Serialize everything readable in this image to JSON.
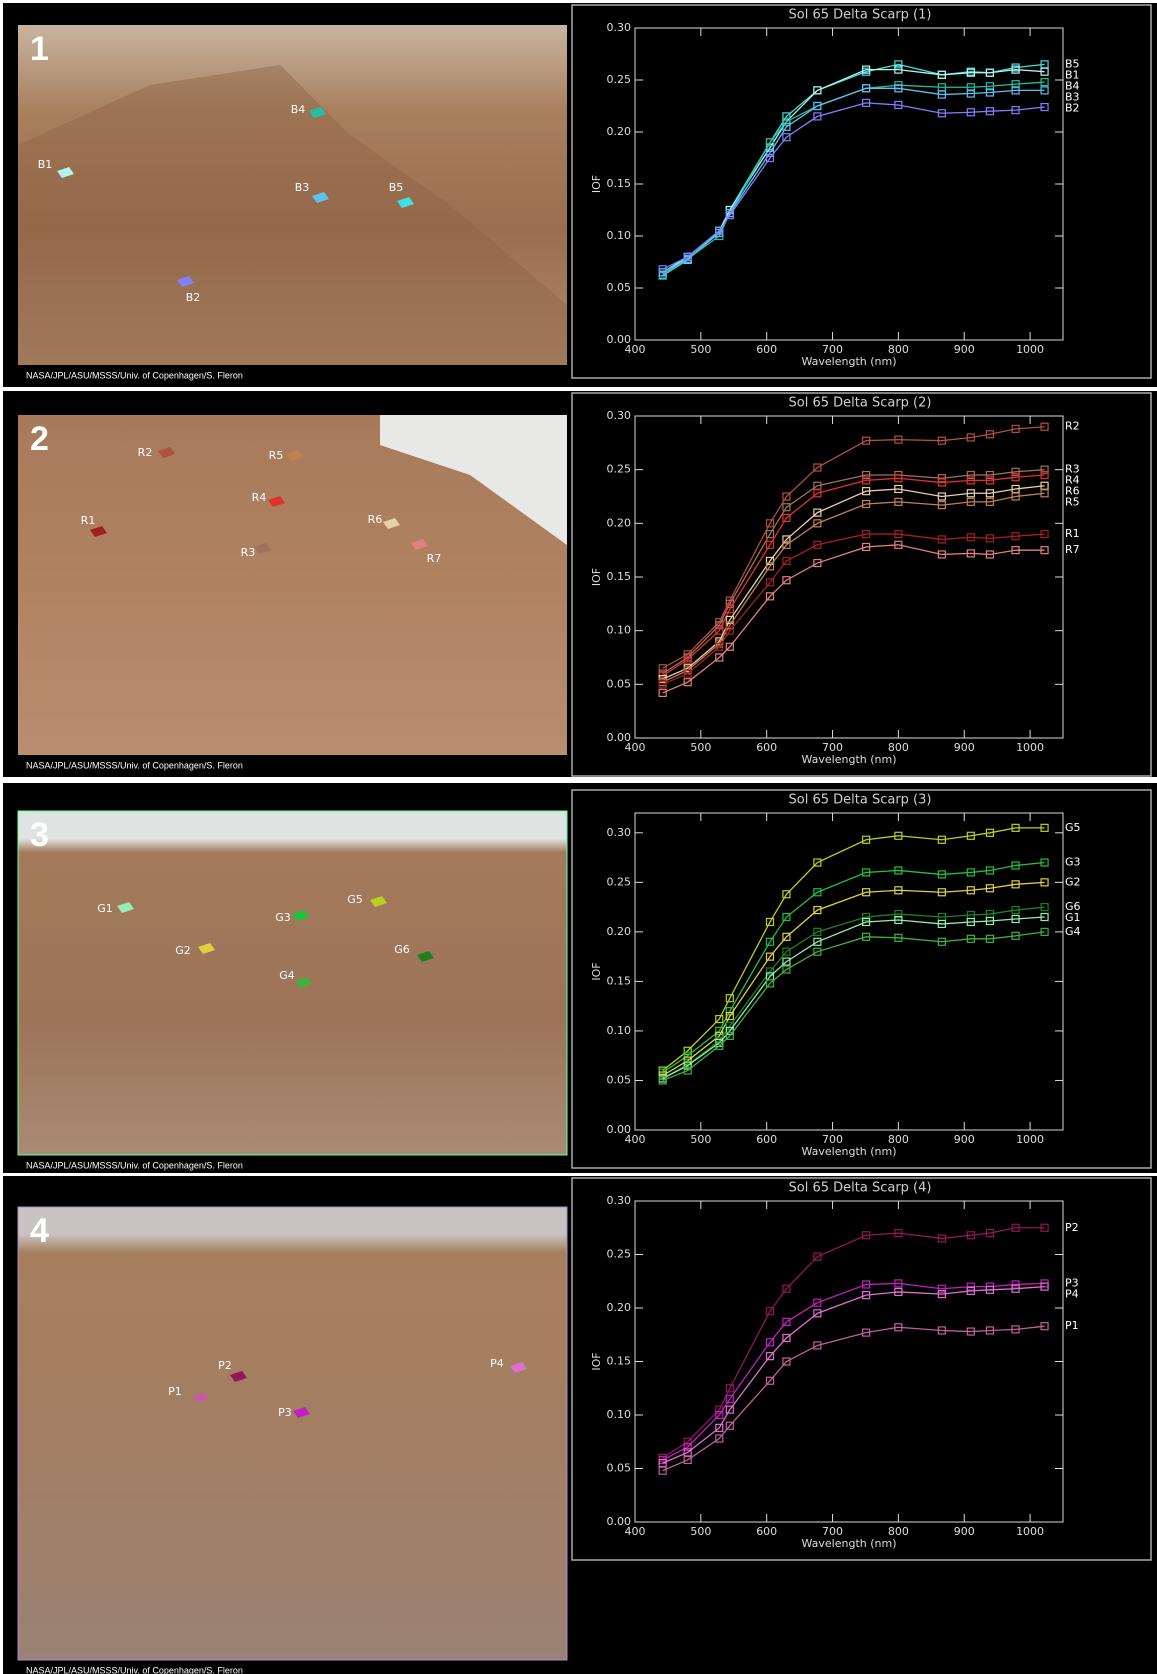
{
  "chart_data": [
    {
      "type": "line",
      "title": "Sol 65 Delta Scarp (1)",
      "x_label": "Wavelength (nm)",
      "y_label": "IOF",
      "x": [
        442,
        480,
        528,
        544,
        605,
        630,
        677,
        751,
        800,
        866,
        910,
        939,
        978,
        1022
      ],
      "xlim": [
        400,
        1050
      ],
      "xticks": [
        400,
        500,
        600,
        700,
        800,
        900,
        1000
      ],
      "ylim": [
        0,
        0.3
      ],
      "yticks": [
        {
          "value": 0,
          "label": "0.00"
        },
        0.05,
        {
          "value": 0.1,
          "label": "0.10"
        },
        0.15,
        {
          "value": 0.2,
          "label": "0.20"
        },
        0.25,
        {
          "value": 0.3,
          "label": "0.30"
        }
      ],
      "series": [
        {
          "name": "B5",
          "color": "#40e0e0",
          "values": [
            0.062,
            0.077,
            0.105,
            0.125,
            0.19,
            0.215,
            0.24,
            0.258,
            0.265,
            0.255,
            0.258,
            0.257,
            0.262,
            0.265
          ]
        },
        {
          "name": "B1",
          "color": "#b0f4f0",
          "values": [
            0.065,
            0.08,
            0.105,
            0.125,
            0.185,
            0.21,
            0.24,
            0.26,
            0.26,
            0.255,
            0.257,
            0.257,
            0.26,
            0.258
          ]
        },
        {
          "name": "B4",
          "color": "#20c0a0",
          "values": [
            0.063,
            0.078,
            0.1,
            0.122,
            0.19,
            0.21,
            0.225,
            0.242,
            0.245,
            0.243,
            0.243,
            0.244,
            0.246,
            0.248
          ]
        },
        {
          "name": "B3",
          "color": "#60c0f0",
          "values": [
            0.065,
            0.078,
            0.103,
            0.122,
            0.18,
            0.205,
            0.225,
            0.242,
            0.242,
            0.236,
            0.237,
            0.238,
            0.24,
            0.24
          ]
        },
        {
          "name": "B2",
          "color": "#8080ff",
          "values": [
            0.068,
            0.08,
            0.105,
            0.12,
            0.175,
            0.195,
            0.215,
            0.228,
            0.226,
            0.218,
            0.219,
            0.22,
            0.221,
            0.224
          ]
        }
      ]
    },
    {
      "type": "line",
      "title": "Sol 65 Delta Scarp (2)",
      "x_label": "Wavelength (nm)",
      "y_label": "IOF",
      "x": [
        442,
        480,
        528,
        544,
        605,
        630,
        677,
        751,
        800,
        866,
        910,
        939,
        978,
        1022
      ],
      "xlim": [
        400,
        1050
      ],
      "xticks": [
        400,
        500,
        600,
        700,
        800,
        900,
        1000
      ],
      "ylim": [
        0,
        0.3
      ],
      "yticks": [
        {
          "value": 0,
          "label": "0.00"
        },
        0.05,
        {
          "value": 0.1,
          "label": "0.10"
        },
        0.15,
        {
          "value": 0.2,
          "label": "0.20"
        },
        0.25,
        {
          "value": 0.3,
          "label": "0.30"
        }
      ],
      "series": [
        {
          "name": "R2",
          "color": "#b05040",
          "values": [
            0.065,
            0.078,
            0.108,
            0.128,
            0.2,
            0.225,
            0.252,
            0.277,
            0.278,
            0.277,
            0.28,
            0.283,
            0.288,
            0.29
          ]
        },
        {
          "name": "R3",
          "color": "#a07060",
          "values": [
            0.06,
            0.075,
            0.105,
            0.125,
            0.19,
            0.215,
            0.235,
            0.245,
            0.245,
            0.242,
            0.245,
            0.245,
            0.248,
            0.25
          ]
        },
        {
          "name": "R4",
          "color": "#e03030",
          "values": [
            0.058,
            0.073,
            0.1,
            0.12,
            0.18,
            0.205,
            0.228,
            0.24,
            0.242,
            0.238,
            0.24,
            0.24,
            0.243,
            0.245
          ]
        },
        {
          "name": "R6",
          "color": "#e8d0a8",
          "values": [
            0.055,
            0.065,
            0.09,
            0.11,
            0.165,
            0.185,
            0.21,
            0.23,
            0.232,
            0.225,
            0.228,
            0.228,
            0.232,
            0.235
          ]
        },
        {
          "name": "R5",
          "color": "#c08050",
          "values": [
            0.052,
            0.063,
            0.088,
            0.105,
            0.16,
            0.18,
            0.2,
            0.218,
            0.22,
            0.217,
            0.22,
            0.22,
            0.225,
            0.228
          ]
        },
        {
          "name": "R1",
          "color": "#a02020",
          "values": [
            0.05,
            0.06,
            0.085,
            0.1,
            0.145,
            0.165,
            0.18,
            0.19,
            0.19,
            0.185,
            0.187,
            0.186,
            0.188,
            0.19
          ]
        },
        {
          "name": "R7",
          "color": "#e08080",
          "values": [
            0.042,
            0.052,
            0.075,
            0.085,
            0.132,
            0.147,
            0.163,
            0.178,
            0.18,
            0.171,
            0.172,
            0.171,
            0.175,
            0.175
          ]
        }
      ]
    },
    {
      "type": "line",
      "title": "Sol 65 Delta Scarp (3)",
      "x_label": "Wavelength (nm)",
      "y_label": "IOF",
      "x": [
        442,
        480,
        528,
        544,
        605,
        630,
        677,
        751,
        800,
        866,
        910,
        939,
        978,
        1022
      ],
      "xlim": [
        400,
        1050
      ],
      "xticks": [
        400,
        500,
        600,
        700,
        800,
        900,
        1000
      ],
      "ylim": [
        0,
        0.32
      ],
      "yticks": [
        {
          "value": 0,
          "label": "0.00"
        },
        0.05,
        {
          "value": 0.1,
          "label": "0.10"
        },
        0.15,
        {
          "value": 0.2,
          "label": "0.20"
        },
        0.25,
        {
          "value": 0.3,
          "label": "0.30"
        }
      ],
      "series": [
        {
          "name": "G5",
          "color": "#b8d020",
          "values": [
            0.06,
            0.08,
            0.112,
            0.133,
            0.21,
            0.238,
            0.27,
            0.293,
            0.297,
            0.293,
            0.297,
            0.3,
            0.305,
            0.305
          ]
        },
        {
          "name": "G3",
          "color": "#20c040",
          "values": [
            0.058,
            0.075,
            0.1,
            0.12,
            0.19,
            0.215,
            0.24,
            0.26,
            0.262,
            0.258,
            0.26,
            0.262,
            0.267,
            0.27
          ]
        },
        {
          "name": "G2",
          "color": "#e0d040",
          "values": [
            0.055,
            0.07,
            0.095,
            0.115,
            0.175,
            0.195,
            0.222,
            0.24,
            0.242,
            0.24,
            0.242,
            0.244,
            0.248,
            0.25
          ]
        },
        {
          "name": "G6",
          "color": "#208020",
          "values": [
            0.052,
            0.066,
            0.09,
            0.105,
            0.16,
            0.18,
            0.2,
            0.215,
            0.218,
            0.215,
            0.217,
            0.218,
            0.222,
            0.225
          ]
        },
        {
          "name": "G1",
          "color": "#90f0b0",
          "values": [
            0.052,
            0.065,
            0.088,
            0.1,
            0.155,
            0.17,
            0.19,
            0.21,
            0.212,
            0.208,
            0.21,
            0.211,
            0.213,
            0.215
          ]
        },
        {
          "name": "G4",
          "color": "#40b040",
          "values": [
            0.05,
            0.06,
            0.085,
            0.095,
            0.148,
            0.162,
            0.18,
            0.195,
            0.194,
            0.19,
            0.193,
            0.193,
            0.196,
            0.2
          ]
        }
      ]
    },
    {
      "type": "line",
      "title": "Sol 65 Delta Scarp (4)",
      "x_label": "Wavelength (nm)",
      "y_label": "IOF",
      "x": [
        442,
        480,
        528,
        544,
        605,
        630,
        677,
        751,
        800,
        866,
        910,
        939,
        978,
        1022
      ],
      "xlim": [
        400,
        1050
      ],
      "xticks": [
        400,
        500,
        600,
        700,
        800,
        900,
        1000
      ],
      "ylim": [
        0,
        0.3
      ],
      "yticks": [
        {
          "value": 0,
          "label": "0.00"
        },
        0.05,
        {
          "value": 0.1,
          "label": "0.10"
        },
        0.15,
        {
          "value": 0.2,
          "label": "0.20"
        },
        0.25,
        {
          "value": 0.3,
          "label": "0.30"
        }
      ],
      "series": [
        {
          "name": "P2",
          "color": "#901858",
          "values": [
            0.06,
            0.075,
            0.105,
            0.125,
            0.197,
            0.218,
            0.248,
            0.268,
            0.27,
            0.265,
            0.268,
            0.27,
            0.275,
            0.275
          ]
        },
        {
          "name": "P3",
          "color": "#c020c0",
          "values": [
            0.058,
            0.07,
            0.1,
            0.115,
            0.168,
            0.187,
            0.205,
            0.222,
            0.223,
            0.218,
            0.22,
            0.22,
            0.222,
            0.223
          ]
        },
        {
          "name": "P4",
          "color": "#e070d0",
          "values": [
            0.055,
            0.065,
            0.088,
            0.105,
            0.155,
            0.172,
            0.195,
            0.212,
            0.215,
            0.213,
            0.216,
            0.217,
            0.218,
            0.22
          ]
        },
        {
          "name": "P1",
          "color": "#c060a0",
          "values": [
            0.048,
            0.058,
            0.078,
            0.09,
            0.132,
            0.15,
            0.165,
            0.177,
            0.182,
            0.179,
            0.178,
            0.179,
            0.18,
            0.183
          ]
        }
      ]
    }
  ],
  "photos": [
    {
      "number": "1",
      "credit": "NASA/JPL/ASU/MSSS/Univ. of Copenhagen/S. Fleron",
      "markers": [
        "B1",
        "B2",
        "B3",
        "B4",
        "B5"
      ]
    },
    {
      "number": "2",
      "credit": "NASA/JPL/ASU/MSSS/Univ. of Copenhagen/S. Fleron",
      "markers": [
        "R1",
        "R2",
        "R3",
        "R4",
        "R5",
        "R6",
        "R7"
      ]
    },
    {
      "number": "3",
      "credit": "NASA/JPL/ASU/MSSS/Univ. of Copenhagen/S. Fleron",
      "markers": [
        "G1",
        "G2",
        "G3",
        "G4",
        "G5",
        "G6"
      ]
    },
    {
      "number": "4",
      "credit": "NASA/JPL/ASU/MSSS/Univ. of Copenhagen/S. Fleron",
      "markers": [
        "P1",
        "P2",
        "P3",
        "P4"
      ]
    }
  ]
}
